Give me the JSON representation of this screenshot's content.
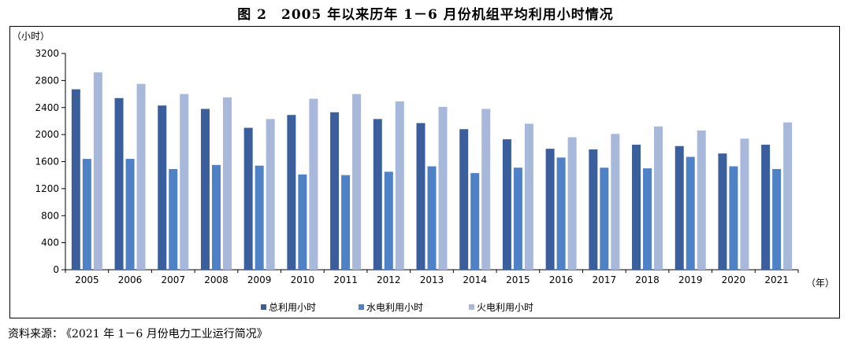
{
  "figure": {
    "title": "图 2　2005 年以来历年 1－6 月份机组平均利用小时情况",
    "source_label": "资料来源：",
    "source_text": "《2021 年 1－6 月份电力工业运行简况》"
  },
  "chart_data": {
    "type": "bar",
    "title": "图 2　2005 年以来历年 1－6 月份机组平均利用小时情况",
    "xlabel": "（年）",
    "ylabel": "（小时）",
    "ylim": [
      0,
      3200
    ],
    "yticks": [
      0,
      400,
      800,
      1200,
      1600,
      2000,
      2400,
      2800,
      3200
    ],
    "grid": false,
    "legend_position": "bottom-center",
    "categories": [
      "2005",
      "2006",
      "2007",
      "2008",
      "2009",
      "2010",
      "2011",
      "2012",
      "2013",
      "2014",
      "2015",
      "2016",
      "2017",
      "2018",
      "2019",
      "2020",
      "2021"
    ],
    "series": [
      {
        "name": "总利用小时",
        "color": "#3a5f9c",
        "values": [
          2670,
          2540,
          2430,
          2380,
          2100,
          2290,
          2330,
          2230,
          2170,
          2080,
          1930,
          1790,
          1780,
          1850,
          1830,
          1720,
          1850
        ]
      },
      {
        "name": "水电利用小时",
        "color": "#4f81c7",
        "values": [
          1640,
          1640,
          1490,
          1550,
          1540,
          1410,
          1400,
          1450,
          1530,
          1430,
          1510,
          1660,
          1510,
          1500,
          1670,
          1530,
          1490
        ]
      },
      {
        "name": "火电利用小时",
        "color": "#a7b8db",
        "values": [
          2920,
          2750,
          2600,
          2550,
          2230,
          2530,
          2600,
          2490,
          2410,
          2380,
          2160,
          1960,
          2010,
          2120,
          2060,
          1940,
          2180
        ]
      }
    ]
  }
}
